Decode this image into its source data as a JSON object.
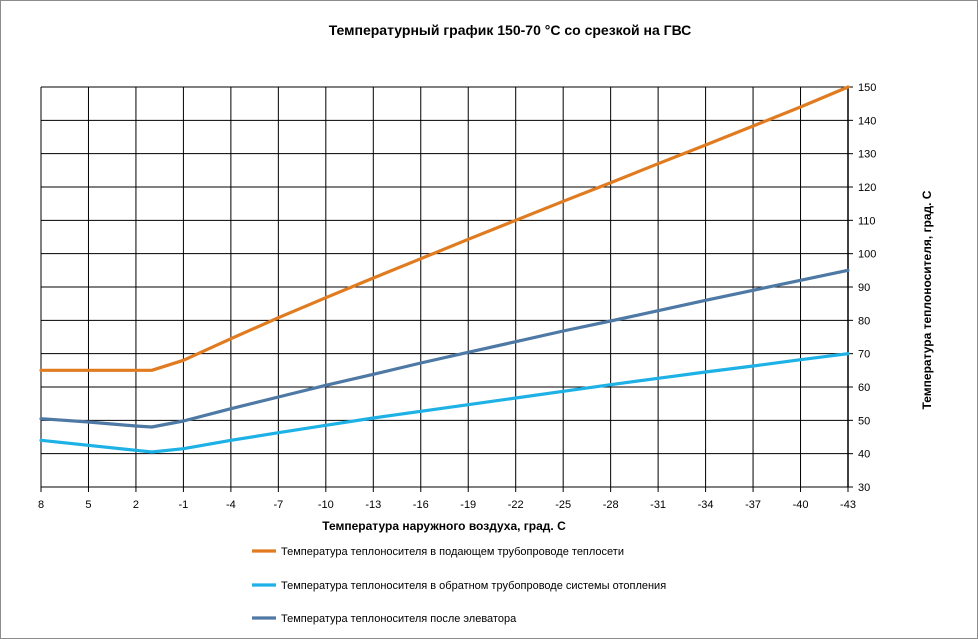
{
  "chart_data": {
    "type": "line",
    "title": "Температурный график 150-70 °С со срезкой на ГВС",
    "xlabel": "Температура наружного воздуха, град. С",
    "ylabel": "Температура теплоносителя, град. С",
    "x": [
      8,
      5,
      2,
      -1,
      -4,
      -7,
      -10,
      -13,
      -16,
      -19,
      -22,
      -25,
      -28,
      -31,
      -34,
      -37,
      -40,
      -43
    ],
    "x_tick_labels": [
      "8",
      "5",
      "2",
      "-1",
      "-4",
      "-7",
      "-10",
      "-13",
      "-16",
      "-19",
      "-22",
      "-25",
      "-28",
      "-31",
      "-34",
      "-37",
      "-40",
      "-43"
    ],
    "xlim": [
      8,
      -43
    ],
    "ylim": [
      30,
      150
    ],
    "y_ticks": [
      30,
      40,
      50,
      60,
      70,
      80,
      90,
      100,
      110,
      120,
      130,
      140,
      150
    ],
    "y_axis_side": "right",
    "grid": true,
    "legend_position": "bottom",
    "series": [
      {
        "name": "Температура теплоносителя в подающем трубопроводе теплосети",
        "color": "#E07B20",
        "points": [
          [
            8,
            65
          ],
          [
            1,
            65
          ],
          [
            -1,
            68
          ],
          [
            -4,
            74.5
          ],
          [
            -7,
            80.8
          ],
          [
            -10,
            86.8
          ],
          [
            -13,
            92.7
          ],
          [
            -16,
            98.5
          ],
          [
            -19,
            104.3
          ],
          [
            -22,
            110
          ],
          [
            -25,
            115.7
          ],
          [
            -28,
            121.3
          ],
          [
            -31,
            127
          ],
          [
            -34,
            132.6
          ],
          [
            -37,
            138.3
          ],
          [
            -40,
            144
          ],
          [
            -43,
            150
          ]
        ]
      },
      {
        "name": "Температура теплоносителя в обратном трубопроводе  системы отопления",
        "color": "#1DB1E6",
        "points": [
          [
            8,
            44
          ],
          [
            2,
            41
          ],
          [
            1,
            40.5
          ],
          [
            -1,
            41.5
          ],
          [
            -4,
            44
          ],
          [
            -7,
            46.3
          ],
          [
            -10,
            48.5
          ],
          [
            -13,
            50.7
          ],
          [
            -16,
            52.7
          ],
          [
            -19,
            54.7
          ],
          [
            -22,
            56.7
          ],
          [
            -25,
            58.7
          ],
          [
            -28,
            60.7
          ],
          [
            -31,
            62.6
          ],
          [
            -34,
            64.5
          ],
          [
            -37,
            66.3
          ],
          [
            -40,
            68.2
          ],
          [
            -43,
            70
          ]
        ]
      },
      {
        "name": "Температура теплоносителя после элеватора",
        "color": "#4F79A5",
        "points": [
          [
            8,
            50.5
          ],
          [
            5,
            49.5
          ],
          [
            2,
            48.3
          ],
          [
            1,
            48
          ],
          [
            -1,
            49.8
          ],
          [
            -4,
            53.5
          ],
          [
            -7,
            57
          ],
          [
            -10,
            60.5
          ],
          [
            -13,
            63.8
          ],
          [
            -16,
            67.2
          ],
          [
            -19,
            70.4
          ],
          [
            -22,
            73.6
          ],
          [
            -25,
            76.8
          ],
          [
            -28,
            79.8
          ],
          [
            -31,
            82.9
          ],
          [
            -34,
            86
          ],
          [
            -37,
            89
          ],
          [
            -40,
            92
          ],
          [
            -43,
            95
          ]
        ]
      }
    ]
  }
}
